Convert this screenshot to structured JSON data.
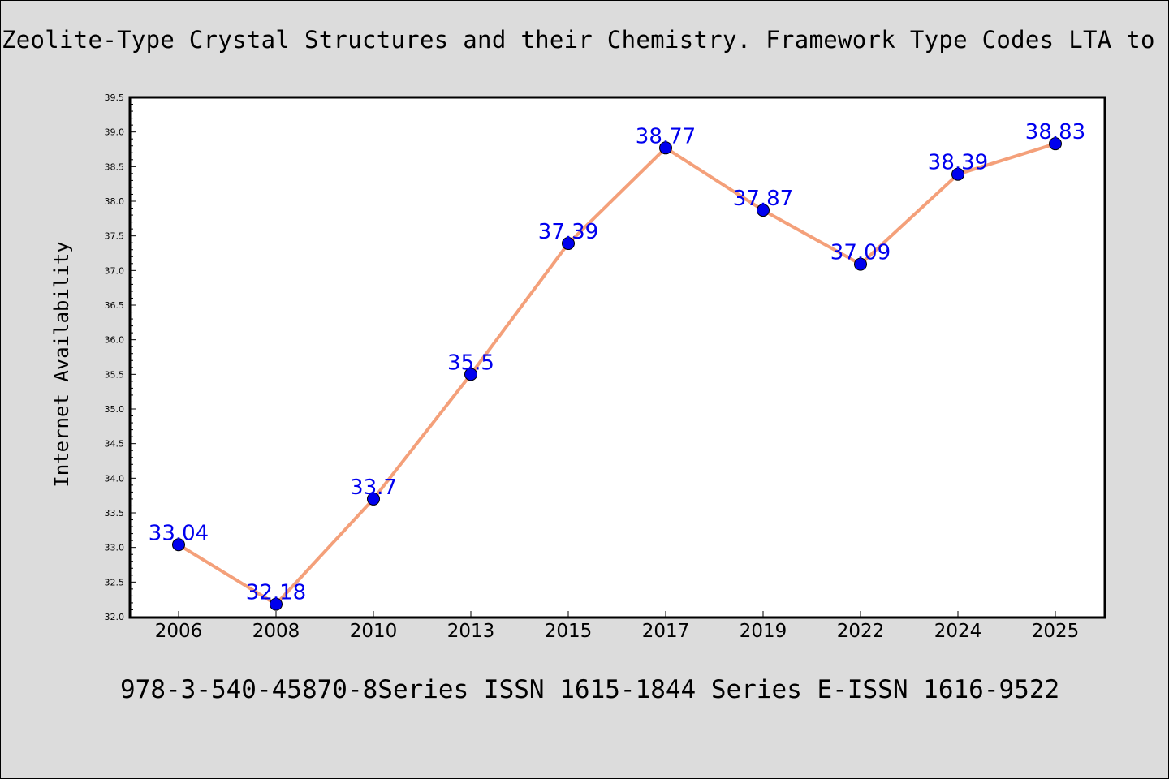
{
  "chart_data": {
    "type": "line",
    "title": "Zeolite-Type Crystal Structures and their Chemistry. Framework Type Codes LTA to RHO",
    "footer": "978-3-540-45870-8Series ISSN 1615-1844 Series E-ISSN 1616-9522",
    "xlabel": "",
    "ylabel": "Internet Availability",
    "categories": [
      "2006",
      "2008",
      "2010",
      "2013",
      "2015",
      "2017",
      "2019",
      "2022",
      "2024",
      "2025"
    ],
    "values": [
      33.04,
      32.18,
      33.7,
      35.5,
      37.39,
      38.77,
      37.87,
      37.09,
      38.39,
      38.83
    ],
    "data_labels": [
      "33.04",
      "32.18",
      "33.7",
      "35.5",
      "37.39",
      "38.77",
      "37.87",
      "37.09",
      "38.39",
      "38.83"
    ],
    "ylim": [
      32.0,
      39.5
    ],
    "yticks": [
      "32.0",
      "32.5",
      "33.0",
      "33.5",
      "34.0",
      "34.5",
      "35.0",
      "35.5",
      "36.0",
      "36.5",
      "37.0",
      "37.5",
      "38.0",
      "38.5",
      "39.0",
      "39.5"
    ],
    "grid": false,
    "legend": "none",
    "colors": {
      "line": "#f4a07a",
      "marker": "#0000ee",
      "data_label": "#0000ee",
      "background": "#dcdcdc",
      "plot_background": "#ffffff"
    }
  }
}
